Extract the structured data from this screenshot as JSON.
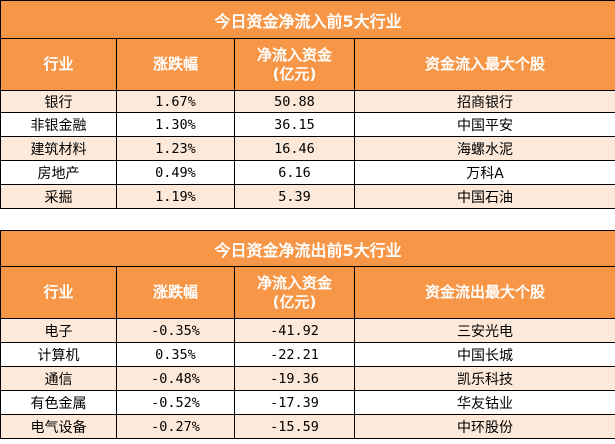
{
  "inflow": {
    "title": "今日资金净流入前5大行业",
    "headers": [
      "行业",
      "涨跌幅",
      "净流入资金\n(亿元)",
      "资金流入最大个股"
    ],
    "rows": [
      [
        "银行",
        "1.67%",
        "50.88",
        "招商银行"
      ],
      [
        "非银金融",
        "1.30%",
        "36.15",
        "中国平安"
      ],
      [
        "建筑材料",
        "1.23%",
        "16.46",
        "海螺水泥"
      ],
      [
        "房地产",
        "0.49%",
        "6.16",
        "万科A"
      ],
      [
        "采掘",
        "1.19%",
        "5.39",
        "中国石油"
      ]
    ]
  },
  "outflow": {
    "title": "今日资金净流出前5大行业",
    "headers": [
      "行业",
      "涨跌幅",
      "净流入资金\n(亿元)",
      "资金流出最大个股"
    ],
    "rows": [
      [
        "电子",
        "-0.35%",
        "-41.92",
        "三安光电"
      ],
      [
        "计算机",
        "0.35%",
        "-22.21",
        "中国长城"
      ],
      [
        "通信",
        "-0.48%",
        "-19.36",
        "凯乐科技"
      ],
      [
        "有色金属",
        "-0.52%",
        "-17.39",
        "华友钴业"
      ],
      [
        "电气设备",
        "-0.27%",
        "-15.59",
        "中环股份"
      ]
    ]
  }
}
